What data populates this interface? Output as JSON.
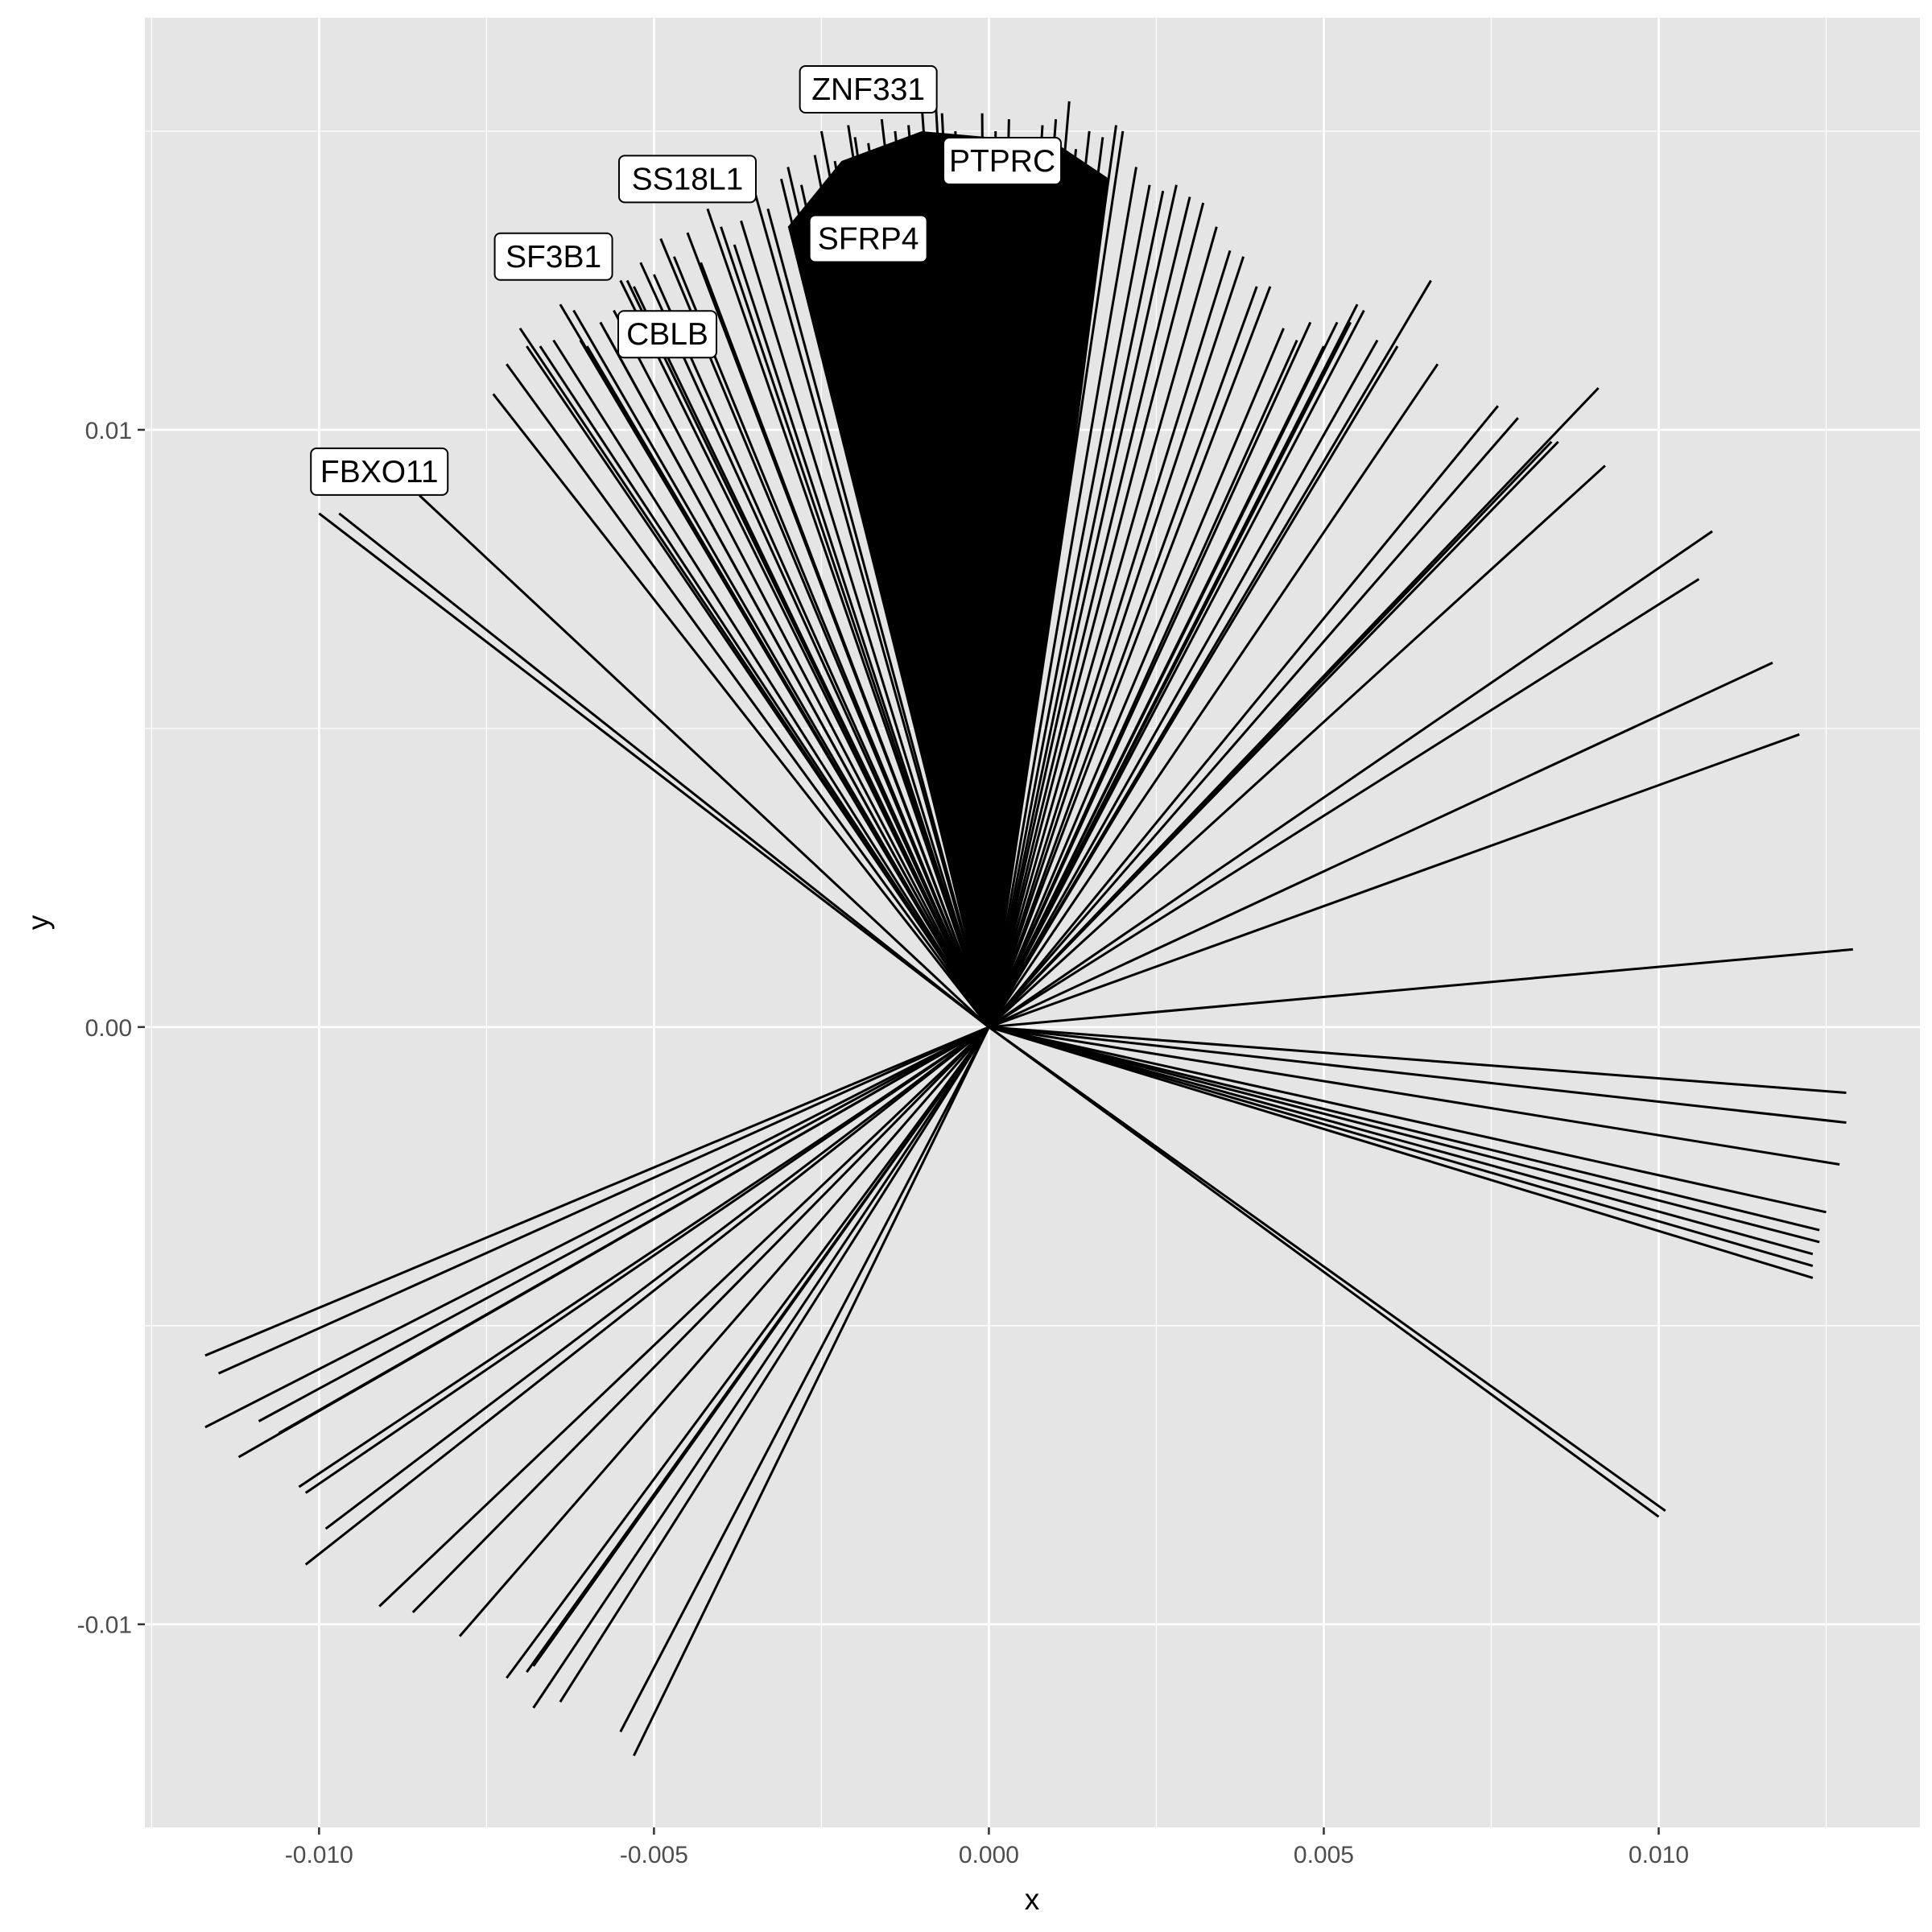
{
  "chart_data": {
    "type": "line",
    "title": "",
    "xlabel": "x",
    "ylabel": "y",
    "xlim": [
      -0.0126,
      0.0139
    ],
    "ylim": [
      -0.0134,
      0.0169
    ],
    "grid": true,
    "legend": "none",
    "colors": {
      "panel": "#e5e5e5",
      "grid": "#ffffff",
      "segment": "#000000",
      "tick_text": "#4d4d4d"
    },
    "x_ticks": [
      {
        "value": -0.01,
        "label": "-0.010"
      },
      {
        "value": -0.005,
        "label": "-0.005"
      },
      {
        "value": 0.0,
        "label": "0.000"
      },
      {
        "value": 0.005,
        "label": "0.005"
      },
      {
        "value": 0.01,
        "label": "0.010"
      }
    ],
    "y_ticks": [
      {
        "value": -0.01,
        "label": "-0.01"
      },
      {
        "value": 0.0,
        "label": "0.00"
      },
      {
        "value": 0.01,
        "label": "0.01"
      }
    ],
    "origin": [
      0,
      0
    ],
    "segments_note": "",
    "segments": [
      [
        -0.01,
        0.0086
      ],
      [
        -0.0097,
        0.0086
      ],
      [
        -0.0085,
        0.0089
      ],
      [
        -0.0074,
        0.0106
      ],
      [
        -0.0072,
        0.0111
      ],
      [
        -0.007,
        0.0117
      ],
      [
        -0.0069,
        0.0114
      ],
      [
        -0.0067,
        0.0114
      ],
      [
        -0.0065,
        0.0115
      ],
      [
        -0.0064,
        0.0121
      ],
      [
        -0.0062,
        0.012
      ],
      [
        -0.0061,
        0.0115
      ],
      [
        -0.006,
        0.0114
      ],
      [
        -0.0058,
        0.0118
      ],
      [
        -0.0057,
        0.0116
      ],
      [
        -0.0056,
        0.012
      ],
      [
        -0.0055,
        0.0125
      ],
      [
        -0.0054,
        0.0125
      ],
      [
        -0.0053,
        0.0124
      ],
      [
        -0.0052,
        0.0128
      ],
      [
        -0.005,
        0.0126
      ],
      [
        -0.0049,
        0.0132
      ],
      [
        -0.0047,
        0.0129
      ],
      [
        -0.0045,
        0.0133
      ],
      [
        -0.0043,
        0.0128
      ],
      [
        -0.0042,
        0.0137
      ],
      [
        -0.004,
        0.0134
      ],
      [
        -0.0038,
        0.0131
      ],
      [
        -0.0037,
        0.0135
      ],
      [
        -0.0035,
        0.014
      ],
      [
        -0.0033,
        0.0137
      ],
      [
        -0.0031,
        0.0142
      ],
      [
        -0.003,
        0.0144
      ],
      [
        -0.0028,
        0.0141
      ],
      [
        -0.0026,
        0.0146
      ],
      [
        -0.0025,
        0.015
      ],
      [
        -0.0023,
        0.0145
      ],
      [
        -0.0021,
        0.0151
      ],
      [
        -0.002,
        0.0149
      ],
      [
        -0.0018,
        0.0148
      ],
      [
        -0.0016,
        0.0152
      ],
      [
        -0.0014,
        0.015
      ],
      [
        -0.0012,
        0.0151
      ],
      [
        -0.001,
        0.0154
      ],
      [
        -0.0008,
        0.0156
      ],
      [
        -0.0007,
        0.0153
      ],
      [
        -0.0005,
        0.015
      ],
      [
        -0.0003,
        0.0149
      ],
      [
        -0.0001,
        0.0153
      ],
      [
        0.0001,
        0.015
      ],
      [
        0.0003,
        0.0152
      ],
      [
        0.0004,
        0.0149
      ],
      [
        0.0006,
        0.0148
      ],
      [
        0.0008,
        0.0151
      ],
      [
        0.001,
        0.0152
      ],
      [
        0.0012,
        0.0155
      ],
      [
        0.0013,
        0.0147
      ],
      [
        0.0015,
        0.015
      ],
      [
        0.0017,
        0.0149
      ],
      [
        0.0019,
        0.0151
      ],
      [
        0.002,
        0.015
      ],
      [
        0.0022,
        0.0144
      ],
      [
        0.0024,
        0.0141
      ],
      [
        0.0026,
        0.014
      ],
      [
        0.0028,
        0.0141
      ],
      [
        0.003,
        0.0139
      ],
      [
        0.0032,
        0.0138
      ],
      [
        0.0034,
        0.0134
      ],
      [
        0.0036,
        0.013
      ],
      [
        0.0038,
        0.0129
      ],
      [
        0.004,
        0.0124
      ],
      [
        0.0042,
        0.0124
      ],
      [
        0.0044,
        0.0117
      ],
      [
        0.0046,
        0.0115
      ],
      [
        0.0048,
        0.0118
      ],
      [
        0.005,
        0.0114
      ],
      [
        0.0052,
        0.0118
      ],
      [
        0.0054,
        0.0118
      ],
      [
        0.0055,
        0.0121
      ],
      [
        0.0056,
        0.012
      ],
      [
        0.0058,
        0.0115
      ],
      [
        0.0061,
        0.0114
      ],
      [
        0.0066,
        0.0125
      ],
      [
        0.0067,
        0.0111
      ],
      [
        0.0076,
        0.0104
      ],
      [
        0.0079,
        0.0102
      ],
      [
        0.0084,
        0.0098
      ],
      [
        0.0085,
        0.0098
      ],
      [
        0.0091,
        0.0107
      ],
      [
        0.0092,
        0.0094
      ],
      [
        0.0108,
        0.0083
      ],
      [
        0.0106,
        0.0075
      ],
      [
        0.0117,
        0.0061
      ],
      [
        0.0121,
        0.0049
      ],
      [
        0.0129,
        0.0013
      ],
      [
        0.0128,
        -0.0011
      ],
      [
        0.0128,
        -0.0016
      ],
      [
        0.0127,
        -0.0023
      ],
      [
        0.0125,
        -0.0031
      ],
      [
        0.0124,
        -0.0034
      ],
      [
        0.0124,
        -0.0036
      ],
      [
        0.0123,
        -0.0038
      ],
      [
        0.0123,
        -0.004
      ],
      [
        0.0123,
        -0.0042
      ],
      [
        0.0101,
        -0.0081
      ],
      [
        0.01,
        -0.0082
      ],
      [
        -0.0117,
        -0.0055
      ],
      [
        -0.0115,
        -0.0058
      ],
      [
        -0.0117,
        -0.0067
      ],
      [
        -0.0112,
        -0.0072
      ],
      [
        -0.0109,
        -0.0066
      ],
      [
        -0.0106,
        -0.0068
      ],
      [
        -0.0102,
        -0.0078
      ],
      [
        -0.0103,
        -0.0077
      ],
      [
        -0.0099,
        -0.0084
      ],
      [
        -0.0102,
        -0.009
      ],
      [
        -0.0091,
        -0.0097
      ],
      [
        -0.0086,
        -0.0098
      ],
      [
        -0.0079,
        -0.0102
      ],
      [
        -0.0072,
        -0.0109
      ],
      [
        -0.0069,
        -0.0108
      ],
      [
        -0.0068,
        -0.0107
      ],
      [
        -0.0068,
        -0.0114
      ],
      [
        -0.0064,
        -0.0113
      ],
      [
        -0.0055,
        -0.0118
      ],
      [
        -0.0053,
        -0.0122
      ]
    ],
    "labels": [
      {
        "text": "ZNF331",
        "x": -0.0018,
        "y": 0.0157
      },
      {
        "text": "PTPRC",
        "x": 0.0002,
        "y": 0.0145
      },
      {
        "text": "SS18L1",
        "x": -0.0045,
        "y": 0.0142
      },
      {
        "text": "SFRP4",
        "x": -0.0018,
        "y": 0.0132
      },
      {
        "text": "SF3B1",
        "x": -0.0065,
        "y": 0.0129
      },
      {
        "text": "CBLB",
        "x": -0.0048,
        "y": 0.0116
      },
      {
        "text": "FBXO11",
        "x": -0.0091,
        "y": 0.0093
      }
    ]
  }
}
